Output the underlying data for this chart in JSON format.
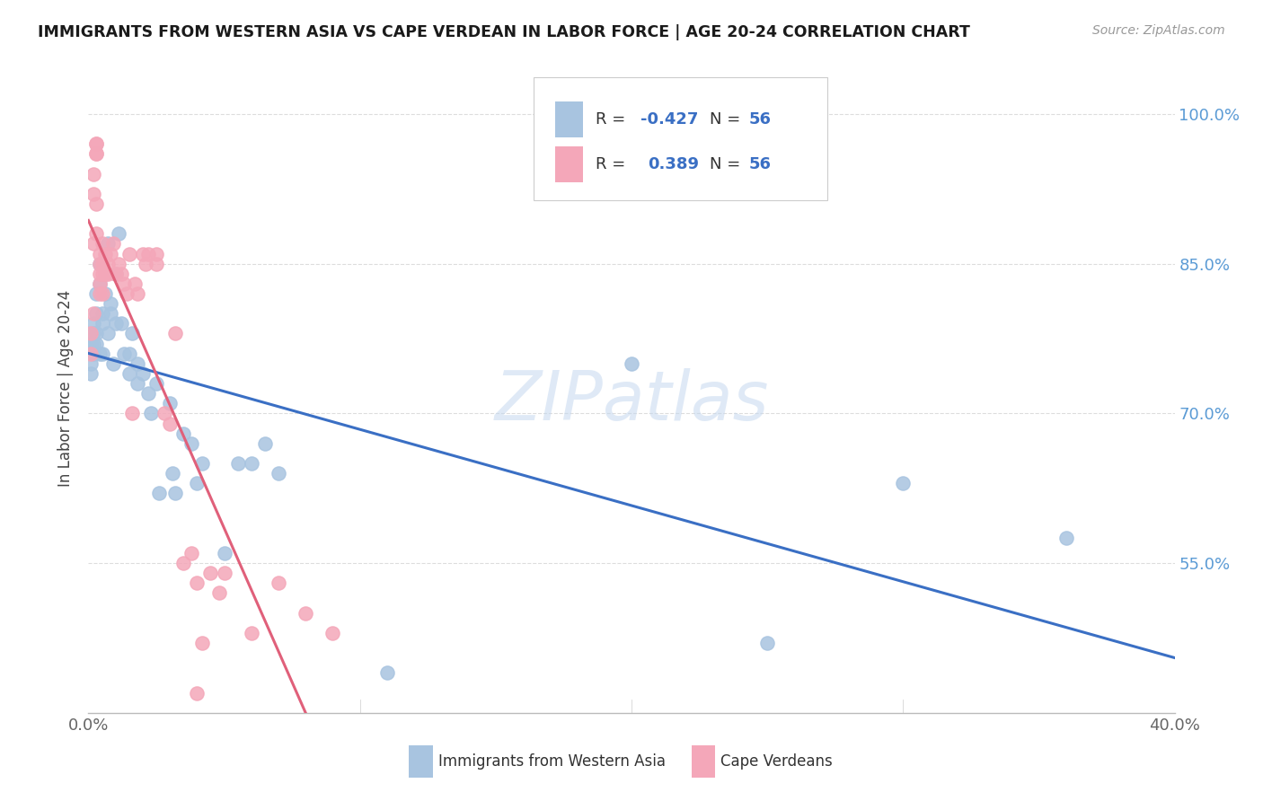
{
  "title": "IMMIGRANTS FROM WESTERN ASIA VS CAPE VERDEAN IN LABOR FORCE | AGE 20-24 CORRELATION CHART",
  "source": "Source: ZipAtlas.com",
  "ylabel_label": "In Labor Force | Age 20-24",
  "legend_label1": "Immigrants from Western Asia",
  "legend_label2": "Cape Verdeans",
  "r1": "-0.427",
  "n1": "56",
  "r2": "0.389",
  "n2": "56",
  "color_blue": "#a8c4e0",
  "color_pink": "#f4a7b9",
  "line_blue": "#3a6fc4",
  "line_pink": "#e0607a",
  "watermark": "ZIPatlas",
  "background_color": "#ffffff",
  "grid_color": "#dddddd",
  "blue_scatter_x": [
    0.001,
    0.001,
    0.001,
    0.002,
    0.002,
    0.002,
    0.002,
    0.003,
    0.003,
    0.003,
    0.003,
    0.004,
    0.004,
    0.004,
    0.005,
    0.005,
    0.005,
    0.006,
    0.006,
    0.007,
    0.007,
    0.008,
    0.008,
    0.009,
    0.01,
    0.01,
    0.011,
    0.012,
    0.013,
    0.015,
    0.015,
    0.016,
    0.018,
    0.018,
    0.02,
    0.022,
    0.023,
    0.025,
    0.026,
    0.03,
    0.031,
    0.032,
    0.035,
    0.038,
    0.04,
    0.042,
    0.05,
    0.055,
    0.06,
    0.065,
    0.07,
    0.2,
    0.25,
    0.3,
    0.36,
    0.11
  ],
  "blue_scatter_y": [
    0.77,
    0.75,
    0.74,
    0.79,
    0.78,
    0.77,
    0.76,
    0.82,
    0.8,
    0.78,
    0.77,
    0.85,
    0.83,
    0.76,
    0.8,
    0.79,
    0.76,
    0.84,
    0.82,
    0.87,
    0.78,
    0.81,
    0.8,
    0.75,
    0.84,
    0.79,
    0.88,
    0.79,
    0.76,
    0.76,
    0.74,
    0.78,
    0.75,
    0.73,
    0.74,
    0.72,
    0.7,
    0.73,
    0.62,
    0.71,
    0.64,
    0.62,
    0.68,
    0.67,
    0.63,
    0.65,
    0.56,
    0.65,
    0.65,
    0.67,
    0.64,
    0.75,
    0.47,
    0.63,
    0.575,
    0.44
  ],
  "pink_scatter_x": [
    0.001,
    0.001,
    0.002,
    0.002,
    0.002,
    0.002,
    0.003,
    0.003,
    0.003,
    0.003,
    0.003,
    0.003,
    0.004,
    0.004,
    0.004,
    0.004,
    0.004,
    0.005,
    0.005,
    0.005,
    0.005,
    0.006,
    0.006,
    0.007,
    0.007,
    0.008,
    0.009,
    0.01,
    0.011,
    0.012,
    0.013,
    0.014,
    0.015,
    0.016,
    0.017,
    0.018,
    0.02,
    0.021,
    0.022,
    0.025,
    0.025,
    0.028,
    0.03,
    0.032,
    0.035,
    0.038,
    0.04,
    0.042,
    0.045,
    0.048,
    0.05,
    0.06,
    0.07,
    0.08,
    0.09,
    0.04
  ],
  "pink_scatter_y": [
    0.78,
    0.76,
    0.94,
    0.92,
    0.87,
    0.8,
    0.97,
    0.96,
    0.97,
    0.96,
    0.91,
    0.88,
    0.86,
    0.85,
    0.84,
    0.83,
    0.82,
    0.87,
    0.85,
    0.84,
    0.82,
    0.86,
    0.84,
    0.85,
    0.84,
    0.86,
    0.87,
    0.84,
    0.85,
    0.84,
    0.83,
    0.82,
    0.86,
    0.7,
    0.83,
    0.82,
    0.86,
    0.85,
    0.86,
    0.86,
    0.85,
    0.7,
    0.69,
    0.78,
    0.55,
    0.56,
    0.53,
    0.47,
    0.54,
    0.52,
    0.54,
    0.48,
    0.53,
    0.5,
    0.48,
    0.42
  ],
  "xlim": [
    0.0,
    0.4
  ],
  "ylim": [
    0.4,
    1.05
  ],
  "ytick_values": [
    0.55,
    0.7,
    0.85,
    1.0
  ],
  "ytick_labels": [
    "55.0%",
    "70.0%",
    "85.0%",
    "100.0%"
  ],
  "xtick_values": [
    0.0,
    0.1,
    0.2,
    0.3,
    0.4
  ],
  "xtick_labels": [
    "0.0%",
    "",
    "",
    "",
    "40.0%"
  ]
}
